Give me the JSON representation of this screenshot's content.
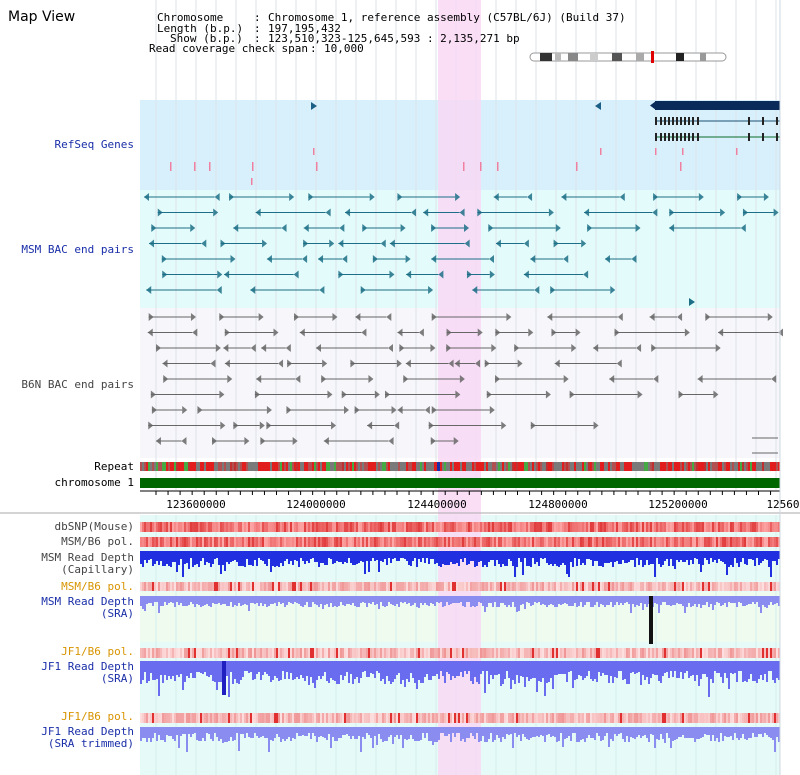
{
  "title": "Map View",
  "info": {
    "chromosome_label": "Chromosome",
    "chromosome_value": "Chromosome 1, reference assembly (C57BL/6J) (Build 37)",
    "length_label": "Length (b.p.)",
    "length_value": "197,195,432",
    "show_label": "Show (b.p.)",
    "show_value": "123,510,323-125,645,593 : 2,135,271 bp",
    "coverage_label": "Read coverage check span",
    "coverage_value": "10,000"
  },
  "tracks": {
    "refseq": "RefSeq Genes",
    "msm_bac": "MSM BAC end pairs",
    "b6n_bac": "B6N BAC end pairs",
    "repeat": "Repeat",
    "chromosome": "chromosome 1",
    "dbsnp": "dbSNP(Mouse)",
    "msm_b6_pol_1": "MSM/B6 pol.",
    "msm_read_depth_cap_1": "MSM Read Depth",
    "msm_read_depth_cap_2": "(Capillary)",
    "msm_b6_pol_2": "MSM/B6 pol.",
    "msm_read_depth_sra_1": "MSM Read Depth",
    "msm_read_depth_sra_2": "(SRA)",
    "jf1_b6_pol_1": "JF1/B6 pol.",
    "jf1_read_depth_1": "JF1 Read Depth",
    "jf1_read_depth_2": "(SRA)",
    "jf1_b6_pol_2": "JF1/B6 pol.",
    "jf1_read_depth_trim_1": "JF1 Read Depth",
    "jf1_read_depth_trim_2": "(SRA trimmed)"
  },
  "axis": {
    "ticks": [
      "123600000",
      "124000000",
      "124400000",
      "124800000",
      "125200000",
      "12560"
    ]
  },
  "colors": {
    "refseq_bg": "#d8f0fb",
    "msm_bg": "#e3fbfb",
    "b6n_bg": "#f6f6fb",
    "highlight": "#f8d8f4",
    "gene": "#0a2a5a",
    "msm_feature": "#1c6f86",
    "b6n_feature": "#666666",
    "chromosome_bar": "#006600",
    "depth_blue": "#2030e0",
    "depth_light": "#8a8cf0"
  }
}
